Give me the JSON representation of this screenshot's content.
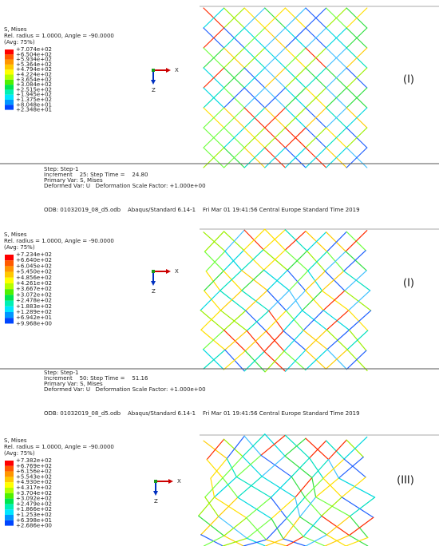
{
  "panels": [
    {
      "legend": {
        "title": [
          "S, Mises",
          "Rel. radius = 1.0000, Angle = -90.0000",
          "(Avg: 75%)"
        ],
        "labels": [
          "+7.074e+02",
          "+6.504e+02",
          "+5.934e+02",
          "+5.364e+02",
          "+4.794e+02",
          "+4.224e+02",
          "+3.654e+02",
          "+3.084e+02",
          "+2.515e+02",
          "+1.945e+02",
          "+1.375e+02",
          "+8.048e+01",
          "+2.348e+01"
        ]
      },
      "axes": {
        "x": "X",
        "z": "Z"
      },
      "label": "(I)",
      "step": [
        "Step: Step-1",
        "Increment    25: Step Time =    24.80",
        "Primary Var: S, Mises",
        "Deformed Var: U   Deformation Scale Factor: +1.000e+00"
      ],
      "odb": "ODB: 01032019_08_d5.odb    Abaqus/Standard 6.14-1    Fri Mar 01 19:41:56 Central Europe Standard Time 2019"
    },
    {
      "legend": {
        "title": [
          "S, Mises",
          "Rel. radius = 1.0000, Angle = -90.0000",
          "(Avg: 75%)"
        ],
        "labels": [
          "+7.234e+02",
          "+6.640e+02",
          "+6.045e+02",
          "+5.450e+02",
          "+4.856e+02",
          "+4.261e+02",
          "+3.667e+02",
          "+3.072e+02",
          "+2.478e+02",
          "+1.883e+02",
          "+1.289e+02",
          "+6.942e+01",
          "+9.968e+00"
        ]
      },
      "axes": {
        "x": "X",
        "z": "Z"
      },
      "label": "(I)",
      "step": [
        "Step: Step-1",
        "Increment    50: Step Time =    51.16",
        "Primary Var: S, Mises",
        "Deformed Var: U   Deformation Scale Factor: +1.000e+00"
      ],
      "odb": "ODB: 01032019_08_d5.odb    Abaqus/Standard 6.14-1    Fri Mar 01 19:41:56 Central Europe Standard Time 2019"
    },
    {
      "legend": {
        "title": [
          "S, Mises",
          "Rel. radius = 1.0000, Angle = -90.0000",
          "(Avg: 75%)"
        ],
        "labels": [
          "+7.382e+02",
          "+6.769e+02",
          "+6.156e+02",
          "+5.543e+02",
          "+4.930e+02",
          "+4.317e+02",
          "+3.704e+02",
          "+3.092e+02",
          "+2.479e+02",
          "+1.866e+02",
          "+1.253e+02",
          "+6.398e+01",
          "+2.686e+00"
        ]
      },
      "axes": {
        "x": "X",
        "z": "Z"
      },
      "label": "(III)"
    }
  ]
}
